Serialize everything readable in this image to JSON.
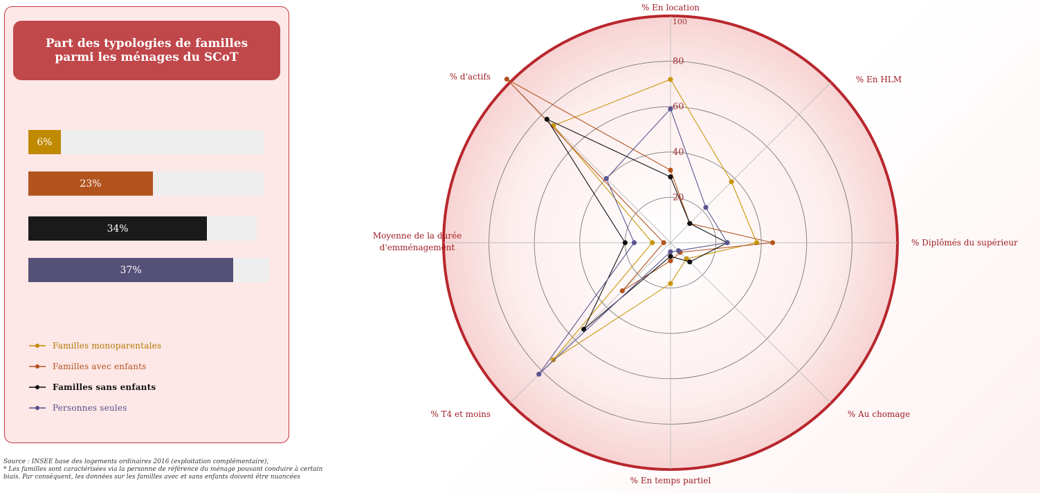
{
  "panel": {
    "title": "Part des typologies de familles parmi les ménages du SCoT",
    "bars": [
      {
        "label": "6%",
        "value": 6,
        "color": "#c08a00",
        "text_color": "#ffffff"
      },
      {
        "label": "23%",
        "value": 23,
        "color": "#b3541e",
        "text_color": "#ffffff"
      },
      {
        "label": "34%",
        "value": 34,
        "color": "#1a1a1a",
        "text_color": "#ffffff"
      },
      {
        "label": "37%",
        "value": 37,
        "color": "#555077",
        "text_color": "#ffffff"
      }
    ]
  },
  "legend": [
    {
      "label": "Familles monoparentales",
      "color": "#c08a00",
      "text_color": "#b07a00"
    },
    {
      "label": "Familles avec enfants",
      "color": "#b3541e",
      "text_color": "#b3541e"
    },
    {
      "label": "Familles sans enfants",
      "color": "#111111",
      "text_color": "#111111"
    },
    {
      "label": "Personnes seules",
      "color": "#555088",
      "text_color": "#555088"
    }
  ],
  "source": [
    "Source : INSEE base des logements ordinaires 2016 (exploitation complémentaire),",
    "* Les familles sont caractérisées via la personne de référence du ménage pouvant conduire à certain",
    "biais. Par conséquent, les données sur les familles avec et sans enfants doivent être nuancées"
  ],
  "chart_data": {
    "type": "radar",
    "axes": [
      "% En location",
      "% En HLM",
      "% Diplômés du supérieur",
      "% Au chomage",
      "% En temps partiel",
      "% T4 et moins",
      "Moyenne de la durée d'emménagement",
      "% d'actifs"
    ],
    "rmax": 100,
    "ticks": [
      "20",
      "40",
      "60",
      "80",
      "100"
    ],
    "tick_values": [
      20,
      40,
      60,
      80,
      100
    ],
    "series": [
      {
        "name": "Familles monoparentales",
        "color": "#c8960a",
        "values": [
          72,
          38,
          38,
          10,
          18,
          73,
          8,
          73
        ]
      },
      {
        "name": "Familles avec enfants",
        "color": "#b3541e",
        "values": [
          32,
          12,
          45,
          6,
          8,
          30,
          3,
          102
        ]
      },
      {
        "name": "Familles sans enfants",
        "color": "#111111",
        "values": [
          29,
          12,
          25,
          12,
          6,
          54,
          20,
          77
        ]
      },
      {
        "name": "Personnes seules",
        "color": "#5a5690",
        "values": [
          59,
          22,
          25,
          5,
          4,
          82,
          16,
          40
        ]
      }
    ]
  }
}
